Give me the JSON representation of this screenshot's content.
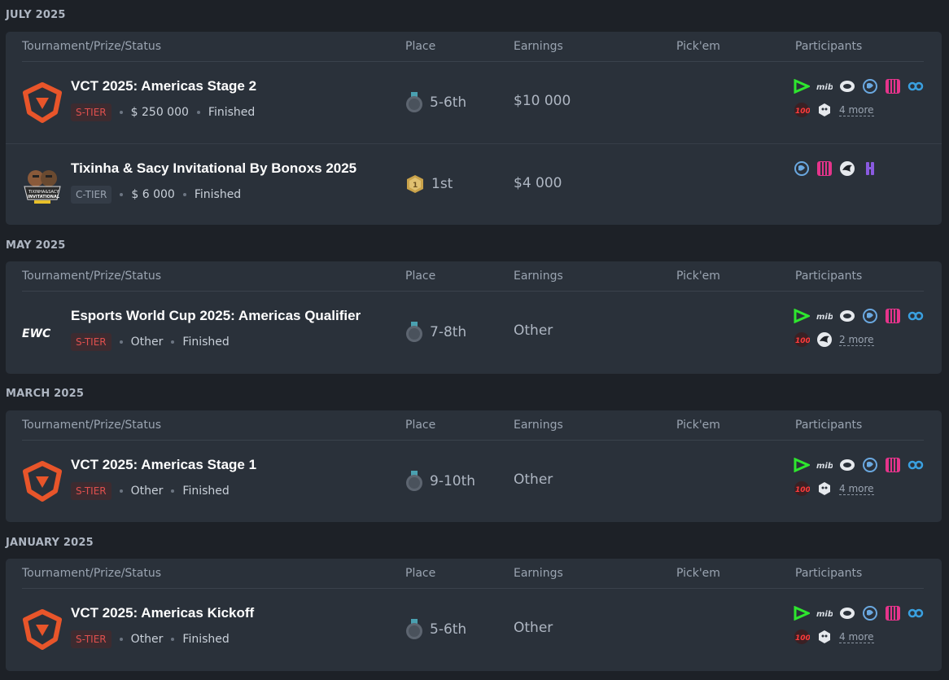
{
  "table_headers": {
    "tournament": "Tournament/Prize/Status",
    "place": "Place",
    "earnings": "Earnings",
    "pickem": "Pick'em",
    "participants": "Participants"
  },
  "groups": [
    {
      "month": "JULY 2025",
      "rows": [
        {
          "logo": "vct-logo-icon",
          "name": "VCT 2025: Americas Stage 2",
          "tier": "S-TIER",
          "prize": "$ 250 000",
          "status": "Finished",
          "medal": "silver-medal-icon",
          "place": "5-6th",
          "earnings": "$10 000",
          "participants_more": "4 more"
        },
        {
          "logo": "tixinha-sacy-logo-icon",
          "name": "Tixinha & Sacy Invitational By Bonoxs 2025",
          "tier": "C-TIER",
          "prize": "$ 6 000",
          "status": "Finished",
          "medal": "gold-medal-icon",
          "place": "1st",
          "earnings": "$4 000",
          "participants_more": ""
        }
      ]
    },
    {
      "month": "MAY 2025",
      "rows": [
        {
          "logo": "ewc-logo-icon",
          "name": "Esports World Cup 2025: Americas Qualifier",
          "tier": "S-TIER",
          "prize": "Other",
          "status": "Finished",
          "medal": "silver-medal-icon",
          "place": "7-8th",
          "earnings": "Other",
          "participants_more": "2 more"
        }
      ]
    },
    {
      "month": "MARCH 2025",
      "rows": [
        {
          "logo": "vct-logo-icon",
          "name": "VCT 2025: Americas Stage 1",
          "tier": "S-TIER",
          "prize": "Other",
          "status": "Finished",
          "medal": "silver-medal-icon",
          "place": "9-10th",
          "earnings": "Other",
          "participants_more": "4 more"
        }
      ]
    },
    {
      "month": "JANUARY 2025",
      "rows": [
        {
          "logo": "vct-logo-icon",
          "name": "VCT 2025: Americas Kickoff",
          "tier": "S-TIER",
          "prize": "Other",
          "status": "Finished",
          "medal": "silver-medal-icon",
          "place": "5-6th",
          "earnings": "Other",
          "participants_more": "4 more"
        }
      ]
    }
  ],
  "colors": {
    "background": "#1d2127",
    "card": "#2a313a",
    "s_tier": "#e0504e",
    "vct_orange": "#e8552a"
  }
}
